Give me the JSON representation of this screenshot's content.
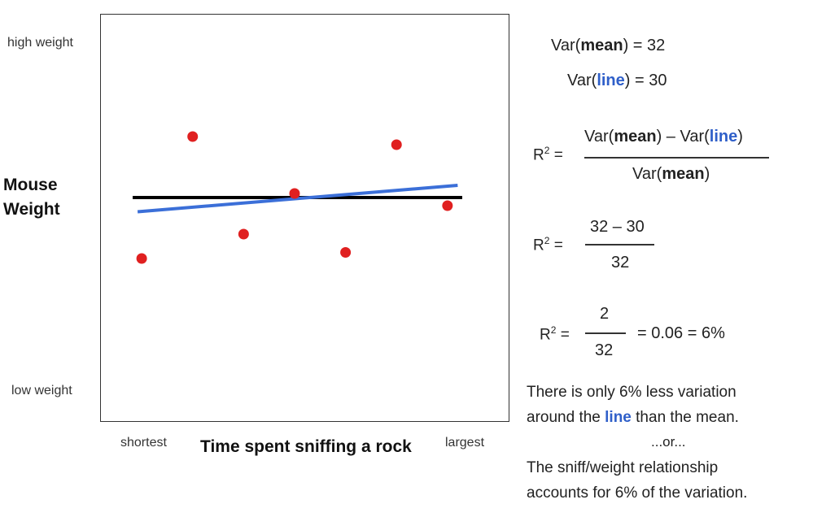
{
  "chart_data": {
    "type": "scatter",
    "xlabel": "Time spent sniffing a rock",
    "ylabel_line1": "Mouse",
    "ylabel_line2": "Weight",
    "x_low_label": "shortest",
    "x_high_label": "largest",
    "y_high_label": "high weight",
    "y_low_label": "low weight",
    "xlim": [
      0,
      10
    ],
    "ylim": [
      0,
      10
    ],
    "points": [
      {
        "x": 1.0,
        "y": 4.0
      },
      {
        "x": 2.25,
        "y": 7.0
      },
      {
        "x": 3.5,
        "y": 4.6
      },
      {
        "x": 4.75,
        "y": 5.6
      },
      {
        "x": 6.0,
        "y": 4.15
      },
      {
        "x": 7.25,
        "y": 6.8
      },
      {
        "x": 8.5,
        "y": 5.3
      }
    ],
    "mean_line": {
      "y": 5.5,
      "color": "#000000"
    },
    "fit_line": {
      "x": [
        0.9,
        8.75
      ],
      "y": [
        5.15,
        5.8
      ],
      "color": "#3b6fd8"
    },
    "point_color": "#e02020"
  },
  "text": {
    "var_mean_prefix": "Var(",
    "mean_word": "mean",
    "var_mean_suffix": ") = 32",
    "var_line_prefix": "Var(",
    "line_word": "line",
    "var_line_suffix": ") = 30",
    "r2_label": "R",
    "r2_sup": "2",
    "r2_eq": " =",
    "frac1_num_a": "Var(",
    "frac1_num_mean": "mean",
    "frac1_num_b": ") – Var(",
    "frac1_num_line": "line",
    "frac1_num_c": ")",
    "frac1_den_a": "Var(",
    "frac1_den_mean": "mean",
    "frac1_den_b": ")",
    "frac2_num": "32 – 30",
    "frac2_den": "32",
    "frac3_num": "2",
    "frac3_den": "32",
    "frac3_result": "= 0.06 = 6%",
    "para1_a": "There is only 6% less variation",
    "para1_b": "around the ",
    "para1_line": "line",
    "para1_c": " than the mean.",
    "para_or": "...or...",
    "para2_a": "The sniff/weight relationship",
    "para2_b": "accounts for 6% of the variation."
  }
}
